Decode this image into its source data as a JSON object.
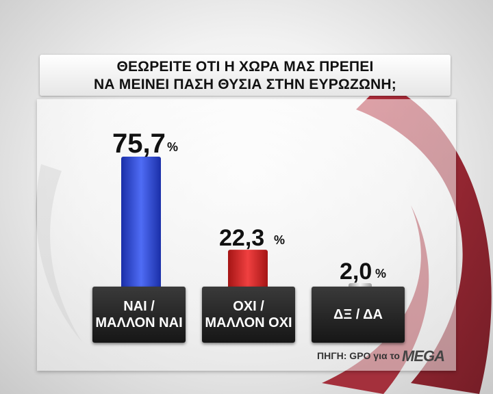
{
  "title": {
    "line1": "ΘΕΩΡΕΙΤΕ ΟΤΙ Η ΧΩΡΑ ΜΑΣ ΠΡΕΠΕΙ",
    "line2": "ΝΑ ΜΕΙΝΕΙ ΠΑΣΗ ΘΥΣΙΑ ΣΤΗΝ ΕΥΡΩΖΩΝΗ;"
  },
  "source": "ΠΗΓΗ: GPO για το",
  "logo": "MEGA",
  "colors": {
    "bar_yes": "#2d4fe0",
    "bar_no": "#e02a2a",
    "bar_dk": "#d8d8d8",
    "swirl": "#8a0f1a"
  },
  "chart_data": {
    "type": "bar",
    "title": "ΘΕΩΡΕΙΤΕ ΟΤΙ Η ΧΩΡΑ ΜΑΣ ΠΡΕΠΕΙ ΝΑ ΜΕΙΝΕΙ ΠΑΣΗ ΘΥΣΙΑ ΣΤΗΝ ΕΥΡΩΖΩΝΗ;",
    "categories": [
      {
        "line1": "ΝΑΙ /",
        "line2": "ΜΑΛΛΟΝ ΝΑΙ"
      },
      {
        "line1": "ΟΧΙ /",
        "line2": "ΜΑΛΛΟΝ ΟΧΙ"
      },
      {
        "line1": "ΔΞ / ΔΑ",
        "line2": ""
      }
    ],
    "values": [
      75.7,
      22.3,
      2.0
    ],
    "value_labels": [
      "75,7",
      "22,3",
      "2,0"
    ],
    "unit": "%",
    "ylim": [
      0,
      100
    ]
  }
}
